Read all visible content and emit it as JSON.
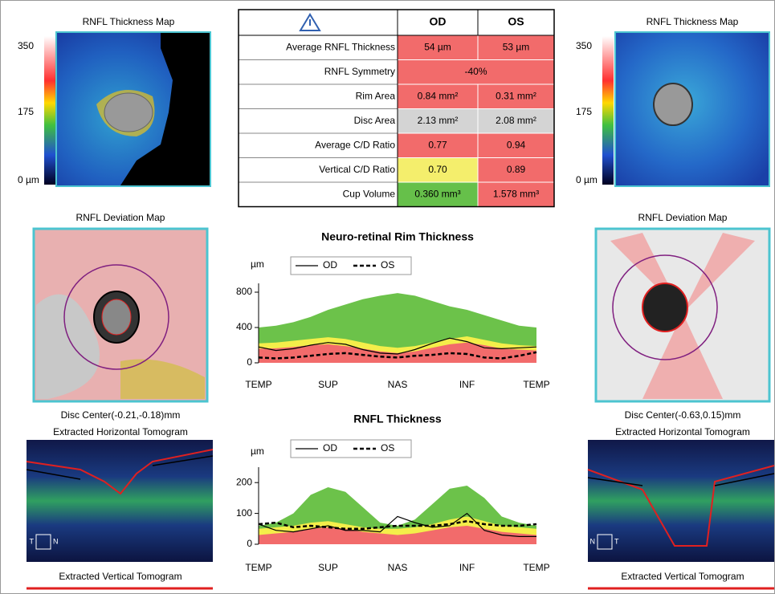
{
  "left": {
    "thickness_title": "RNFL Thickness Map",
    "scale": [
      "350",
      "175",
      "0 µm"
    ],
    "deviation_title": "RNFL Deviation Map",
    "disc_center": "Disc Center(-0.21,-0.18)mm",
    "horizontal_title": "Extracted Horizontal Tomogram",
    "orientation": [
      "T",
      "N"
    ],
    "vertical_title": "Extracted Vertical Tomogram"
  },
  "right": {
    "thickness_title": "RNFL Thickness Map",
    "scale": [
      "350",
      "175",
      "0 µm"
    ],
    "deviation_title": "RNFL Deviation Map",
    "disc_center": "Disc Center(-0.63,0.15)mm",
    "horizontal_title": "Extracted Horizontal Tomogram",
    "orientation": [
      "N",
      "T"
    ],
    "vertical_title": "Extracted Vertical Tomogram"
  },
  "table": {
    "header": [
      "OD",
      "OS"
    ],
    "rows": [
      {
        "label": "Average RNFL Thickness",
        "od": "54 µm",
        "os": "53 µm",
        "od_color": "#f26b6b",
        "os_color": "#f26b6b"
      },
      {
        "label": "RNFL Symmetry",
        "both": "-40%",
        "color": "#f26b6b"
      },
      {
        "label": "Rim Area",
        "od": "0.84 mm²",
        "os": "0.31 mm²",
        "od_color": "#f26b6b",
        "os_color": "#f26b6b"
      },
      {
        "label": "Disc Area",
        "od": "2.13 mm²",
        "os": "2.08 mm²",
        "od_color": "#d4d4d4",
        "os_color": "#d4d4d4"
      },
      {
        "label": "Average C/D Ratio",
        "od": "0.77",
        "os": "0.94",
        "od_color": "#f26b6b",
        "os_color": "#f26b6b"
      },
      {
        "label": "Vertical C/D Ratio",
        "od": "0.70",
        "os": "0.89",
        "od_color": "#f4ee6c",
        "os_color": "#f26b6b"
      },
      {
        "label": "Cup Volume",
        "od": "0.360 mm³",
        "os": "1.578 mm³",
        "od_color": "#66c04a",
        "os_color": "#f26b6b"
      }
    ]
  },
  "chart_data": [
    {
      "type": "line",
      "title": "Neuro-retinal Rim Thickness",
      "y_label": "µm",
      "x": [
        0,
        1,
        2,
        3,
        4,
        5,
        6,
        7,
        8,
        9,
        10,
        11,
        12,
        13,
        14,
        15,
        16
      ],
      "xlim": [
        0,
        16
      ],
      "xticks": [
        {
          "value": 0,
          "label": "TEMP"
        },
        {
          "value": 4,
          "label": "SUP"
        },
        {
          "value": 8,
          "label": "NAS"
        },
        {
          "value": 12,
          "label": "INF"
        },
        {
          "value": 16,
          "label": "TEMP"
        }
      ],
      "ylim": [
        0,
        900
      ],
      "yticks": [
        0,
        400,
        800
      ],
      "series": [
        {
          "kind": "area",
          "color": "#6cc24a",
          "values": [
            400,
            420,
            460,
            520,
            600,
            660,
            720,
            760,
            790,
            760,
            700,
            640,
            600,
            540,
            480,
            420,
            400
          ]
        },
        {
          "kind": "area",
          "color": "#f4ee4a",
          "values": [
            220,
            230,
            250,
            270,
            290,
            270,
            230,
            190,
            170,
            190,
            230,
            270,
            300,
            260,
            220,
            200,
            190
          ]
        },
        {
          "kind": "area",
          "color": "#f26b6b",
          "values": [
            160,
            165,
            180,
            200,
            210,
            190,
            160,
            130,
            110,
            130,
            170,
            210,
            230,
            200,
            160,
            150,
            140
          ]
        },
        {
          "name": "OD",
          "color": "#000000",
          "dash": false,
          "values": [
            180,
            140,
            160,
            200,
            230,
            210,
            150,
            110,
            100,
            150,
            220,
            280,
            240,
            170,
            160,
            170,
            180
          ]
        },
        {
          "name": "OS",
          "color": "#000000",
          "dash": true,
          "values": [
            60,
            50,
            60,
            80,
            100,
            110,
            90,
            70,
            60,
            80,
            90,
            110,
            100,
            60,
            50,
            80,
            120
          ]
        }
      ]
    },
    {
      "type": "line",
      "title": "RNFL Thickness",
      "y_label": "µm",
      "x": [
        0,
        1,
        2,
        3,
        4,
        5,
        6,
        7,
        8,
        9,
        10,
        11,
        12,
        13,
        14,
        15,
        16
      ],
      "xlim": [
        0,
        16
      ],
      "xticks": [
        {
          "value": 0,
          "label": "TEMP"
        },
        {
          "value": 4,
          "label": "SUP"
        },
        {
          "value": 8,
          "label": "NAS"
        },
        {
          "value": 12,
          "label": "INF"
        },
        {
          "value": 16,
          "label": "TEMP"
        }
      ],
      "ylim": [
        0,
        250
      ],
      "yticks": [
        0,
        100,
        200
      ],
      "series": [
        {
          "kind": "area",
          "color": "#6cc24a",
          "values": [
            60,
            70,
            100,
            160,
            185,
            170,
            120,
            70,
            60,
            80,
            130,
            180,
            190,
            150,
            90,
            70,
            60
          ]
        },
        {
          "kind": "area",
          "color": "#f4ee4a",
          "values": [
            50,
            55,
            60,
            70,
            75,
            65,
            55,
            50,
            50,
            55,
            65,
            80,
            90,
            75,
            60,
            55,
            50
          ]
        },
        {
          "kind": "area",
          "color": "#f26b6b",
          "values": [
            30,
            35,
            40,
            50,
            55,
            50,
            40,
            35,
            30,
            35,
            45,
            55,
            60,
            50,
            40,
            35,
            30
          ]
        },
        {
          "name": "OD",
          "color": "#000000",
          "dash": false,
          "values": [
            65,
            45,
            40,
            50,
            60,
            45,
            45,
            40,
            90,
            70,
            55,
            60,
            100,
            45,
            30,
            25,
            25
          ]
        },
        {
          "name": "OS",
          "color": "#000000",
          "dash": true,
          "values": [
            65,
            70,
            55,
            60,
            55,
            50,
            50,
            55,
            60,
            60,
            60,
            65,
            75,
            65,
            60,
            60,
            65
          ]
        }
      ]
    }
  ]
}
